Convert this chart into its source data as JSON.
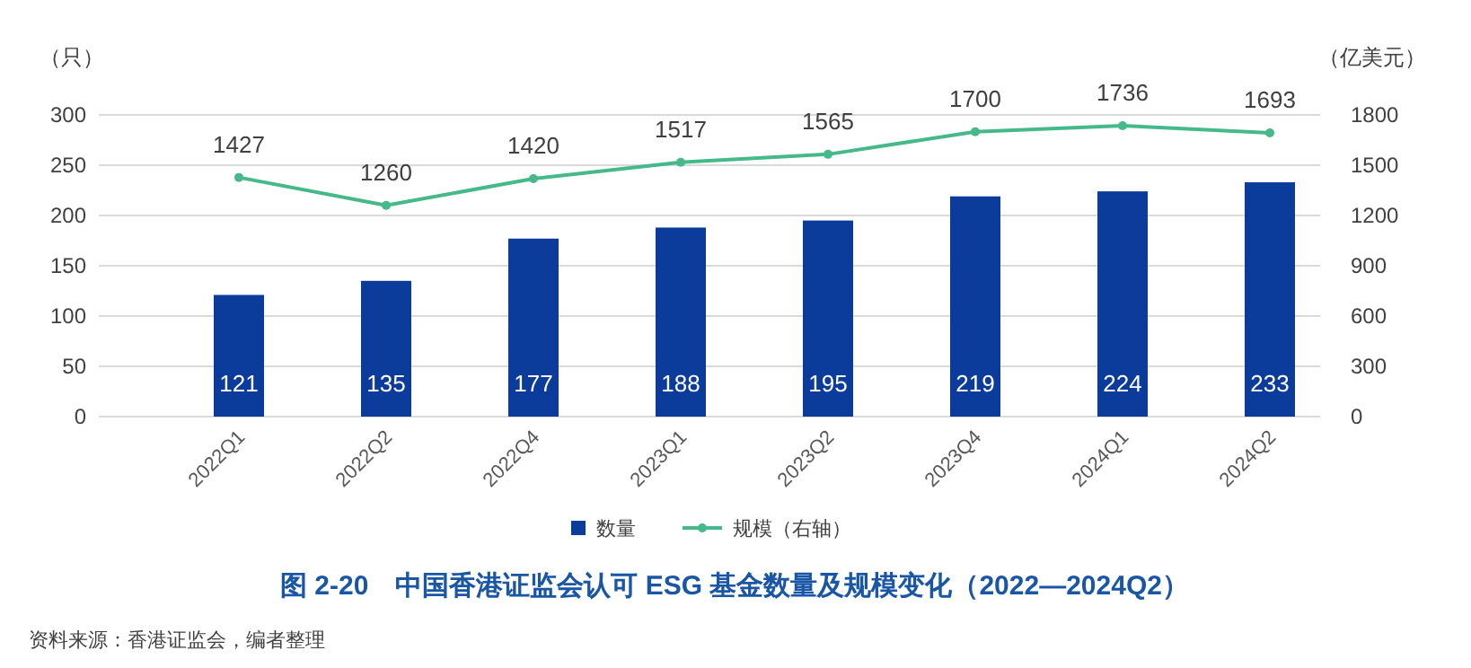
{
  "chart_data": {
    "type": "bar",
    "title": "图 2-20　中国香港证监会认可 ESG 基金数量及规模变化（2022—2024Q2）",
    "categories": [
      "2022Q1",
      "2022Q2",
      "2022Q4",
      "2023Q1",
      "2023Q2",
      "2023Q4",
      "2024Q1",
      "2024Q2"
    ],
    "series": [
      {
        "name": "数量",
        "color": "#0b3b9b",
        "values": [
          121,
          135,
          177,
          188,
          195,
          219,
          224,
          233
        ]
      },
      {
        "name": "规模（右轴）",
        "type": "line",
        "axis": "y2",
        "color": "#45b98a",
        "marker": "circle",
        "values": [
          1427,
          1260,
          1420,
          1517,
          1565,
          1700,
          1736,
          1693
        ]
      }
    ],
    "ylabel": "（只）",
    "y2label": "（亿美元）",
    "ylim": [
      0,
      300
    ],
    "yticks": [
      0,
      50,
      100,
      150,
      200,
      250,
      300
    ],
    "y2lim": [
      0,
      1800
    ],
    "y2ticks": [
      0,
      300,
      600,
      900,
      1200,
      1500,
      1800
    ],
    "grid": "y",
    "legend": "bottom",
    "data_labels": true,
    "annotations": [
      "资料来源：香港证监会，编者整理"
    ]
  }
}
